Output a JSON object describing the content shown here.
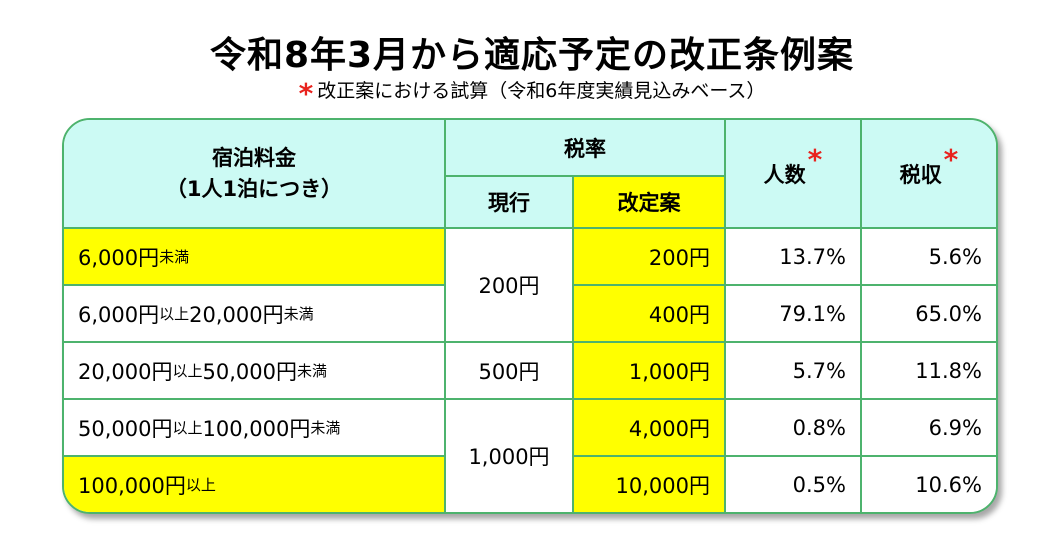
{
  "title": "令和8年3月から適応予定の改正条例案",
  "subtitle": {
    "mark": "*",
    "text": "改正案における試算（令和6年度実績見込みベース）"
  },
  "header": {
    "price_line1": "宿泊料金",
    "price_line2": "（1人1泊につき）",
    "tax_rate": "税率",
    "current": "現行",
    "revised": "改定案",
    "people": "人数",
    "revenue": "税収",
    "mark": "*"
  },
  "rows": [
    {
      "price_main": "6,000円",
      "price_suffix": "未満",
      "revised": "200円",
      "people": "13.7%",
      "revenue": "5.6%"
    },
    {
      "price_a": "6,000円",
      "price_a_suffix": "以上",
      "price_b": "20,000円",
      "price_b_suffix": "未満",
      "revised": "400円",
      "people": "79.1%",
      "revenue": "65.0%"
    },
    {
      "price_a": "20,000円",
      "price_a_suffix": "以上",
      "price_b": "50,000円",
      "price_b_suffix": "未満",
      "current": "500円",
      "revised": "1,000円",
      "people": "5.7%",
      "revenue": "11.8%"
    },
    {
      "price_a": "50,000円",
      "price_a_suffix": "以上",
      "price_b": "100,000円",
      "price_b_suffix": "未満",
      "revised": "4,000円",
      "people": "0.8%",
      "revenue": "6.9%"
    },
    {
      "price_main": "100,000円",
      "price_suffix": "以上",
      "revised": "10,000円",
      "people": "0.5%",
      "revenue": "10.6%"
    }
  ],
  "current_groups": {
    "rows_1_2": "200円",
    "rows_4_5": "1,000円"
  },
  "colors": {
    "header_bg": "#ccfaf4",
    "highlight": "#ffff00",
    "border": "#4db36d",
    "asterisk": "#e8231e"
  }
}
